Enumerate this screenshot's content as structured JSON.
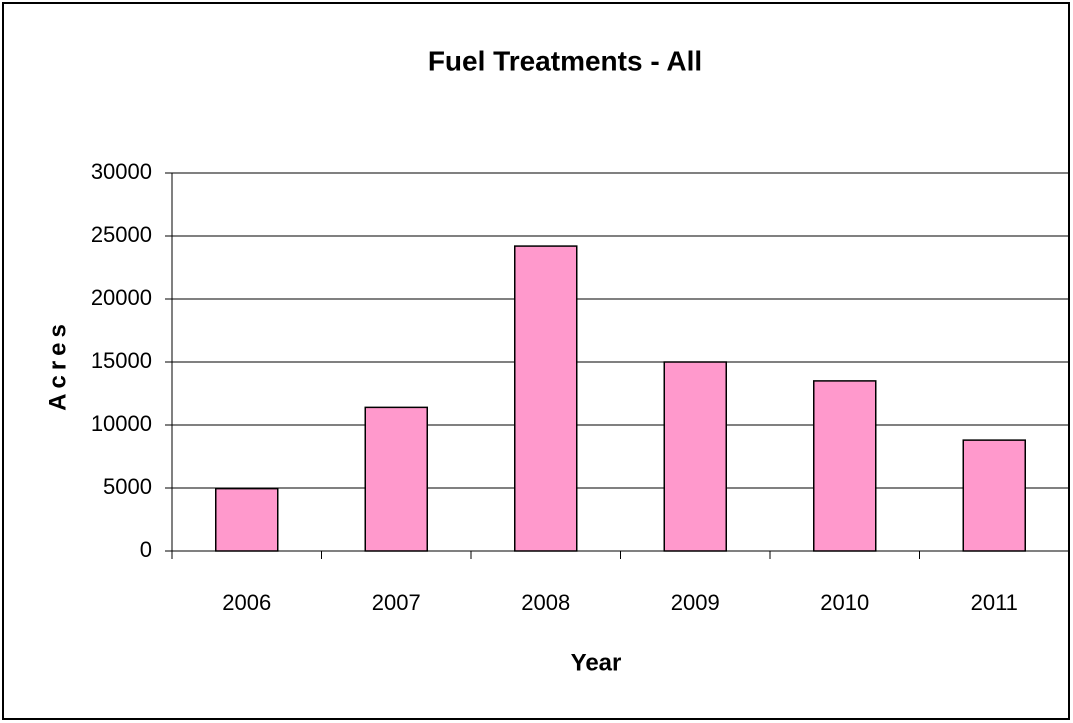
{
  "chart_data": {
    "type": "bar",
    "title": "Fuel Treatments - All",
    "x_label": "Year",
    "y_label": "Acres",
    "categories": [
      "2006",
      "2007",
      "2008",
      "2009",
      "2010",
      "2011"
    ],
    "values": [
      4950,
      11400,
      24200,
      15000,
      13500,
      8800
    ],
    "color": "#ff99cc",
    "ylim": [
      0,
      30000
    ],
    "yticks": [
      0,
      5000,
      10000,
      15000,
      20000,
      25000,
      30000
    ],
    "grid": true
  }
}
